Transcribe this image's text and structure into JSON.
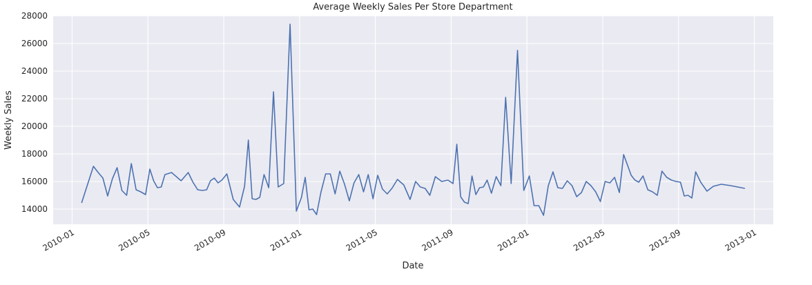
{
  "chart_data": {
    "type": "line",
    "title": "Average Weekly Sales Per Store Department",
    "x_label": "Date",
    "y_label": "Weekly Sales",
    "grid": true,
    "xlim": [
      "2009-12",
      "2013-02"
    ],
    "xticks": [
      "2010-01",
      "2010-05",
      "2010-09",
      "2011-01",
      "2011-05",
      "2011-09",
      "2012-01",
      "2012-05",
      "2012-09",
      "2013-01"
    ],
    "ylim": [
      12900,
      28000
    ],
    "yticks": [
      14000,
      16000,
      18000,
      20000,
      22000,
      24000,
      26000,
      28000
    ],
    "color": "#4c72b0",
    "x": [
      "2010-01",
      "2010-02",
      "2010-02",
      "2010-02",
      "2010-02",
      "2010-03",
      "2010-03",
      "2010-03",
      "2010-03",
      "2010-04",
      "2010-04",
      "2010-04",
      "2010-04",
      "2010-05",
      "2010-05",
      "2010-05",
      "2010-05",
      "2010-05",
      "2010-06",
      "2010-06",
      "2010-07",
      "2010-07",
      "2010-07",
      "2010-07",
      "2010-08",
      "2010-08",
      "2010-08",
      "2010-08",
      "2010-08",
      "2010-09",
      "2010-09",
      "2010-09",
      "2010-10",
      "2010-10",
      "2010-10",
      "2010-10",
      "2010-10",
      "2010-11",
      "2010-11",
      "2010-11",
      "2010-11",
      "2010-12",
      "2010-12",
      "2010-12",
      "2011-01",
      "2011-01",
      "2011-01",
      "2011-01",
      "2011-01",
      "2011-02",
      "2011-02",
      "2011-02",
      "2011-02",
      "2011-03",
      "2011-03",
      "2011-03",
      "2011-03",
      "2011-04",
      "2011-04",
      "2011-04",
      "2011-04",
      "2011-05",
      "2011-05",
      "2011-05",
      "2011-05",
      "2011-06",
      "2011-06",
      "2011-06",
      "2011-07",
      "2011-07",
      "2011-07",
      "2011-07",
      "2011-08",
      "2011-08",
      "2011-08",
      "2011-09",
      "2011-09",
      "2011-09",
      "2011-09",
      "2011-09",
      "2011-10",
      "2011-10",
      "2011-10",
      "2011-10",
      "2011-10",
      "2011-11",
      "2011-11",
      "2011-11",
      "2011-11",
      "2011-12",
      "2011-12",
      "2011-12",
      "2012-01",
      "2012-01",
      "2012-01",
      "2012-01",
      "2012-02",
      "2012-02",
      "2012-02",
      "2012-02",
      "2012-03",
      "2012-03",
      "2012-03",
      "2012-03",
      "2012-04",
      "2012-04",
      "2012-04",
      "2012-04",
      "2012-05",
      "2012-05",
      "2012-05",
      "2012-05",
      "2012-06",
      "2012-06",
      "2012-06",
      "2012-06",
      "2012-06",
      "2012-07",
      "2012-07",
      "2012-07",
      "2012-07",
      "2012-08",
      "2012-08",
      "2012-08",
      "2012-08",
      "2012-09",
      "2012-09",
      "2012-09",
      "2012-09",
      "2012-09",
      "2012-10",
      "2012-10",
      "2012-10",
      "2012-11",
      "2012-11",
      "2012-12"
    ],
    "values": [
      14450,
      17100,
      16650,
      16250,
      14950,
      16200,
      17000,
      15350,
      15000,
      17300,
      15400,
      15250,
      15050,
      16900,
      16050,
      15550,
      15600,
      16500,
      16650,
      16050,
      16650,
      15950,
      15400,
      15350,
      15400,
      16050,
      16250,
      15900,
      16100,
      16550,
      14700,
      14150,
      15650,
      19000,
      14750,
      14700,
      14850,
      16500,
      15550,
      22500,
      15600,
      15850,
      27400,
      13850,
      14850,
      16300,
      13950,
      14000,
      13600,
      15200,
      16550,
      16550,
      15100,
      16750,
      15800,
      14600,
      15900,
      16500,
      15250,
      16500,
      14750,
      16450,
      15450,
      15100,
      15500,
      16150,
      15750,
      14700,
      16000,
      15600,
      15500,
      15000,
      16350,
      16000,
      16100,
      15850,
      18700,
      14900,
      14500,
      14400,
      16400,
      15050,
      15550,
      15600,
      16100,
      15150,
      16350,
      15700,
      22100,
      15850,
      25500,
      15350,
      16400,
      14250,
      14250,
      13550,
      15700,
      16700,
      15550,
      15500,
      16050,
      15700,
      14900,
      15200,
      16000,
      15700,
      15250,
      14550,
      16000,
      15900,
      16300,
      15200,
      17950,
      17200,
      16450,
      16100,
      15950,
      16400,
      15400,
      15250,
      15000,
      16750,
      16300,
      16100,
      16000,
      15950,
      14950,
      15000,
      14800,
      16700,
      15950,
      15300,
      15650,
      15800,
      15700,
      15500
    ]
  }
}
